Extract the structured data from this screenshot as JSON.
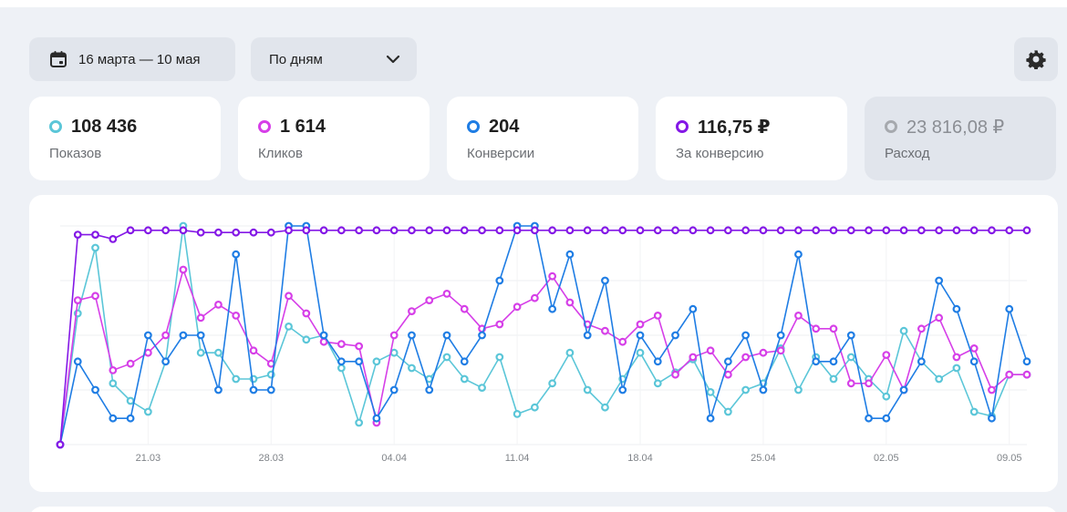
{
  "toolbar": {
    "date_range": "16 марта — 10 мая",
    "period": "По дням"
  },
  "metrics": [
    {
      "id": "impressions",
      "value": "108 436",
      "label": "Показов",
      "color": "#5bc6d8",
      "active": true
    },
    {
      "id": "clicks",
      "value": "1 614",
      "label": "Кликов",
      "color": "#d63fe8",
      "active": true
    },
    {
      "id": "conversions",
      "value": "204",
      "label": "Конверсии",
      "color": "#1f7de4",
      "active": true
    },
    {
      "id": "cost_per_conversion",
      "value": "116,75 ₽",
      "label": "За конверсию",
      "color": "#8418e6",
      "active": true
    },
    {
      "id": "spend",
      "value": "23 816,08 ₽",
      "label": "Расход",
      "color": "#a6a9ae",
      "active": false
    }
  ],
  "chart_data": {
    "type": "line",
    "categories": [
      "16.03",
      "17.03",
      "18.03",
      "19.03",
      "20.03",
      "21.03",
      "22.03",
      "23.03",
      "24.03",
      "25.03",
      "26.03",
      "27.03",
      "28.03",
      "29.03",
      "30.03",
      "31.03",
      "01.04",
      "02.04",
      "03.04",
      "04.04",
      "05.04",
      "06.04",
      "07.04",
      "08.04",
      "09.04",
      "10.04",
      "11.04",
      "12.04",
      "13.04",
      "14.04",
      "15.04",
      "16.04",
      "17.04",
      "18.04",
      "19.04",
      "20.04",
      "21.04",
      "22.04",
      "23.04",
      "24.04",
      "25.04",
      "26.04",
      "27.04",
      "28.04",
      "29.04",
      "30.04",
      "01.05",
      "02.05",
      "03.05",
      "04.05",
      "05.05",
      "06.05",
      "07.05",
      "08.05",
      "09.05",
      "10.05"
    ],
    "x_tick_labels": [
      "21.03",
      "28.03",
      "04.04",
      "11.04",
      "18.04",
      "25.04",
      "02.05",
      "09.05"
    ],
    "ylim": [
      0,
      100
    ],
    "grid": true,
    "series": [
      {
        "name": "Показов",
        "color": "#5bc6d8",
        "values": [
          0,
          60,
          90,
          28,
          20,
          15,
          38,
          100,
          42,
          42,
          30,
          30,
          32,
          54,
          48,
          50,
          35,
          10,
          38,
          42,
          35,
          30,
          40,
          30,
          26,
          40,
          14,
          17,
          28,
          42,
          25,
          17,
          30,
          42,
          28,
          33,
          39,
          24,
          15,
          25,
          28,
          44,
          25,
          40,
          30,
          40,
          30,
          22,
          52,
          38,
          30,
          35,
          15,
          13,
          32,
          32
        ]
      },
      {
        "name": "Кликов",
        "color": "#d63fe8",
        "values": [
          0,
          66,
          68,
          34,
          37,
          42,
          50,
          80,
          58,
          64,
          59,
          43,
          37,
          68,
          60,
          47,
          46,
          45,
          10,
          50,
          61,
          66,
          69,
          62,
          53,
          55,
          63,
          67,
          77,
          65,
          55,
          52,
          47,
          55,
          59,
          32,
          40,
          43,
          32,
          40,
          42,
          43,
          59,
          53,
          53,
          28,
          28,
          41,
          25,
          53,
          58,
          40,
          44,
          25,
          32,
          32
        ]
      },
      {
        "name": "Конверсии",
        "color": "#1f7de4",
        "values": [
          0,
          38,
          25,
          12,
          12,
          50,
          38,
          50,
          50,
          25,
          87,
          25,
          25,
          100,
          100,
          50,
          38,
          38,
          12,
          25,
          50,
          25,
          50,
          38,
          50,
          75,
          100,
          100,
          62,
          87,
          50,
          75,
          25,
          50,
          38,
          50,
          62,
          12,
          38,
          50,
          25,
          50,
          87,
          38,
          38,
          50,
          12,
          12,
          25,
          38,
          75,
          62,
          38,
          12,
          62,
          38
        ]
      },
      {
        "name": "За конверсию",
        "color": "#8418e6",
        "values": [
          0,
          96,
          96,
          94,
          98,
          98,
          98,
          98,
          97,
          97,
          97,
          97,
          97,
          98,
          98,
          98,
          98,
          98,
          98,
          98,
          98,
          98,
          98,
          98,
          98,
          98,
          98,
          98,
          98,
          98,
          98,
          98,
          98,
          98,
          98,
          98,
          98,
          98,
          98,
          98,
          98,
          98,
          98,
          98,
          98,
          98,
          98,
          98,
          98,
          98,
          98,
          98,
          98,
          98,
          98,
          98
        ]
      }
    ]
  }
}
